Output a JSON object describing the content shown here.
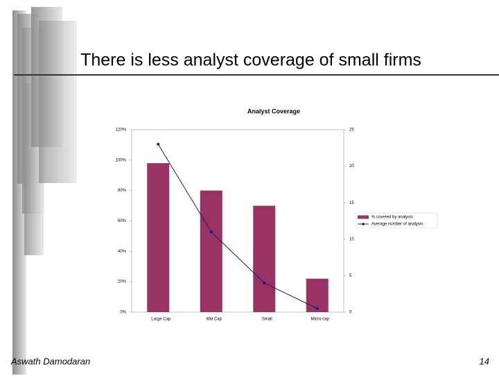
{
  "slide": {
    "title": "There is less analyst coverage of small firms",
    "footer": "Aswath Damodaran",
    "page": "14"
  },
  "chart_data": {
    "type": "bar",
    "title": "Analyst Coverage",
    "categories": [
      "Large Cap",
      "Mid Cap",
      "Small",
      "Micro-cap"
    ],
    "series": [
      {
        "name": "% covered by analysts",
        "color": "#993366",
        "values": [
          98,
          80,
          70,
          22
        ]
      },
      {
        "name": "Average number of analysts",
        "color": "#1a1a80",
        "values": [
          23,
          11,
          4,
          0.5
        ],
        "axis": "y2",
        "type": "line"
      }
    ],
    "ylim": [
      0,
      120
    ],
    "yticks": [
      {
        "value": 0,
        "label": "0%"
      },
      {
        "value": 20,
        "label": "20%"
      },
      {
        "value": 40,
        "label": "40%"
      },
      {
        "value": 60,
        "label": "60%"
      },
      {
        "value": 80,
        "label": "80%"
      },
      {
        "value": 100,
        "label": "100%"
      },
      {
        "value": 120,
        "label": "120%"
      }
    ],
    "y2lim": [
      0,
      25
    ],
    "y2ticks": [
      0,
      5,
      10,
      15,
      20,
      25
    ],
    "grid": false,
    "legend": "right"
  }
}
